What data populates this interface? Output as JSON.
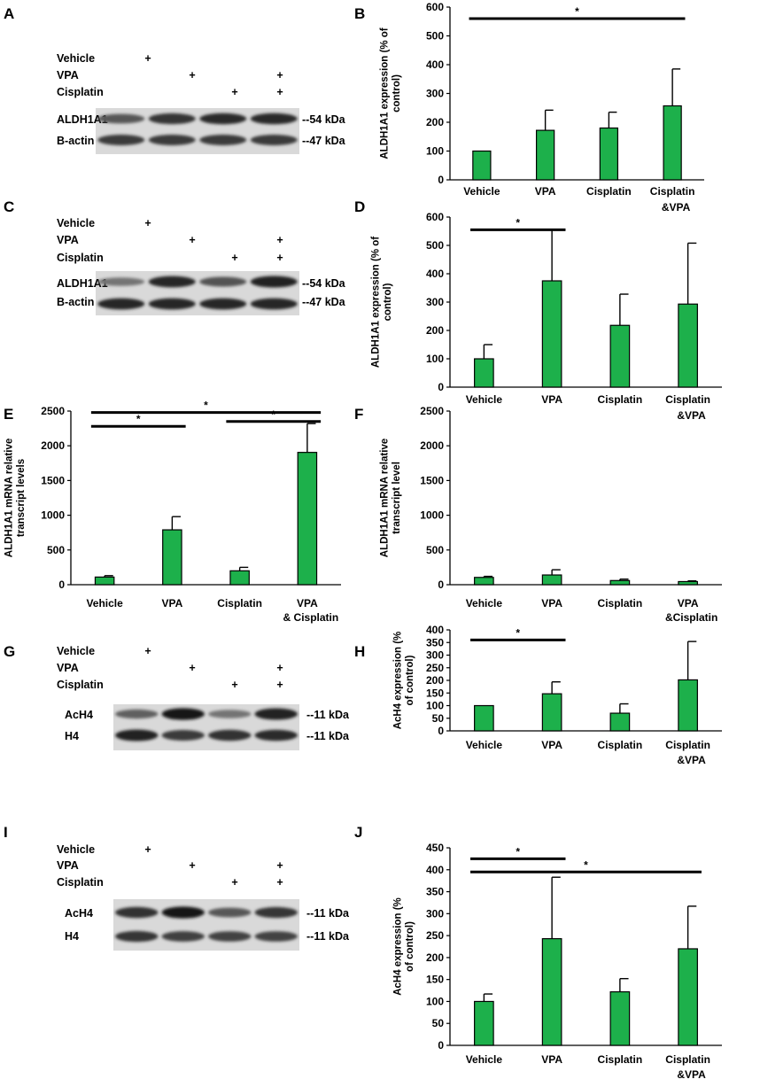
{
  "blot_panels": [
    {
      "label": "A",
      "rows": [
        "Vehicle",
        "VPA",
        "Cisplatin"
      ],
      "signs": [
        [
          true,
          false,
          false,
          false
        ],
        [
          false,
          true,
          false,
          true
        ],
        [
          false,
          false,
          true,
          true
        ]
      ],
      "bands": [
        {
          "name": "ALDH1A1",
          "kda": "--54 kDa",
          "intensity": [
            0.6,
            0.78,
            0.82,
            0.82
          ]
        },
        {
          "name": "B-actin",
          "kda": "--47 kDa",
          "intensity": [
            0.75,
            0.75,
            0.75,
            0.75
          ]
        }
      ]
    },
    {
      "label": "C",
      "rows": [
        "Vehicle",
        "VPA",
        "Cisplatin"
      ],
      "signs": [
        [
          true,
          false,
          false,
          false
        ],
        [
          false,
          true,
          false,
          true
        ],
        [
          false,
          false,
          true,
          true
        ]
      ],
      "bands": [
        {
          "name": "ALDH1A1",
          "kda": "--54 kDa",
          "intensity": [
            0.45,
            0.85,
            0.62,
            0.88
          ]
        },
        {
          "name": "B-actin",
          "kda": "--47 kDa",
          "intensity": [
            0.85,
            0.85,
            0.85,
            0.85
          ]
        }
      ]
    },
    {
      "label": "G",
      "rows": [
        "Vehicle",
        "VPA",
        "Cisplatin"
      ],
      "signs": [
        [
          true,
          false,
          false,
          false
        ],
        [
          false,
          true,
          false,
          true
        ],
        [
          false,
          false,
          true,
          true
        ]
      ],
      "bands": [
        {
          "name": "AcH4",
          "kda": "--11 kDa",
          "intensity": [
            0.55,
            0.92,
            0.45,
            0.88
          ]
        },
        {
          "name": "H4",
          "kda": "--11 kDa",
          "intensity": [
            0.88,
            0.75,
            0.8,
            0.82
          ]
        }
      ]
    },
    {
      "label": "I",
      "rows": [
        "Vehicle",
        "VPA",
        "Cisplatin"
      ],
      "signs": [
        [
          true,
          false,
          false,
          false
        ],
        [
          false,
          true,
          false,
          true
        ],
        [
          false,
          false,
          true,
          true
        ]
      ],
      "bands": [
        {
          "name": "AcH4",
          "kda": "--11 kDa",
          "intensity": [
            0.8,
            0.92,
            0.6,
            0.78
          ]
        },
        {
          "name": "H4",
          "kda": "--11 kDa",
          "intensity": [
            0.78,
            0.72,
            0.7,
            0.7
          ]
        }
      ]
    }
  ],
  "chart_data": [
    {
      "label": "B",
      "type": "bar",
      "ylabel": "ALDH1A1 expression (% of control)",
      "categories": [
        "Vehicle",
        "VPA",
        "Cisplatin",
        "Cisplatin &VPA"
      ],
      "values": [
        100,
        172,
        180,
        257
      ],
      "errors": [
        0,
        70,
        55,
        128
      ],
      "ylim": [
        0,
        600
      ],
      "yticks": [
        0,
        100,
        200,
        300,
        400,
        500,
        600
      ],
      "significance": [
        {
          "from": 0,
          "to": 3,
          "y": 560,
          "text": "*"
        }
      ],
      "bar_color": "#1db04b"
    },
    {
      "label": "D",
      "type": "bar",
      "ylabel": "ALDH1A1 expression (% of control)",
      "categories": [
        "Vehicle",
        "VPA",
        "Cisplatin",
        "Cisplatin &VPA"
      ],
      "values": [
        100,
        375,
        218,
        293
      ],
      "errors": [
        50,
        180,
        110,
        215
      ],
      "ylim": [
        0,
        600
      ],
      "yticks": [
        0,
        100,
        200,
        300,
        400,
        500,
        600
      ],
      "significance": [
        {
          "from": 0,
          "to": 1,
          "y": 555,
          "text": "*"
        }
      ],
      "bar_color": "#1db04b"
    },
    {
      "label": "E",
      "type": "bar",
      "ylabel": "ALDH1A1 mRNA relative transcript levels",
      "categories": [
        "Vehicle",
        "VPA",
        "Cisplatin",
        "VPA & Cisplatin"
      ],
      "values": [
        110,
        790,
        200,
        1905
      ],
      "errors": [
        20,
        190,
        50,
        415
      ],
      "ylim": [
        0,
        2500
      ],
      "yticks": [
        0,
        500,
        1000,
        1500,
        2000,
        2500
      ],
      "significance": [
        {
          "from": 0,
          "to": 3,
          "y": 2480,
          "text": "*"
        },
        {
          "from": 0,
          "to": 1,
          "y": 2280,
          "text": "*"
        },
        {
          "from": 2,
          "to": 3,
          "y": 2350,
          "text": "*"
        }
      ],
      "bar_color": "#1db04b"
    },
    {
      "label": "F",
      "type": "bar",
      "ylabel": "ALDH1A1 mRNA relative transcript level",
      "categories": [
        "Vehicle",
        "VPA",
        "Cisplatin",
        "VPA &Cisplatin"
      ],
      "values": [
        105,
        140,
        60,
        45
      ],
      "errors": [
        15,
        75,
        20,
        10
      ],
      "ylim": [
        0,
        2500
      ],
      "yticks": [
        0,
        500,
        1000,
        1500,
        2000,
        2500
      ],
      "significance": [],
      "bar_color": "#1db04b"
    },
    {
      "label": "H",
      "type": "bar",
      "ylabel": "AcH4 expression (% of control)",
      "categories": [
        "Vehicle",
        "VPA",
        "Cisplatin",
        "Cisplatin &VPA"
      ],
      "values": [
        100,
        147,
        70,
        202
      ],
      "errors": [
        0,
        47,
        37,
        152
      ],
      "ylim": [
        0,
        400
      ],
      "yticks": [
        0,
        50,
        100,
        150,
        200,
        250,
        300,
        350,
        400
      ],
      "significance": [
        {
          "from": 0,
          "to": 1,
          "y": 360,
          "text": "*"
        }
      ],
      "bar_color": "#1db04b"
    },
    {
      "label": "J",
      "type": "bar",
      "ylabel": "AcH4 expression (% of control)",
      "categories": [
        "Vehicle",
        "VPA",
        "Cisplatin",
        "Cisplatin &VPA"
      ],
      "values": [
        100,
        243,
        122,
        220
      ],
      "errors": [
        17,
        140,
        30,
        97
      ],
      "ylim": [
        0,
        450
      ],
      "yticks": [
        0,
        50,
        100,
        150,
        200,
        250,
        300,
        350,
        400,
        450
      ],
      "significance": [
        {
          "from": 0,
          "to": 1,
          "y": 425,
          "text": "*"
        },
        {
          "from": 0,
          "to": 3,
          "y": 395,
          "text": "*"
        }
      ],
      "bar_color": "#1db04b"
    }
  ]
}
